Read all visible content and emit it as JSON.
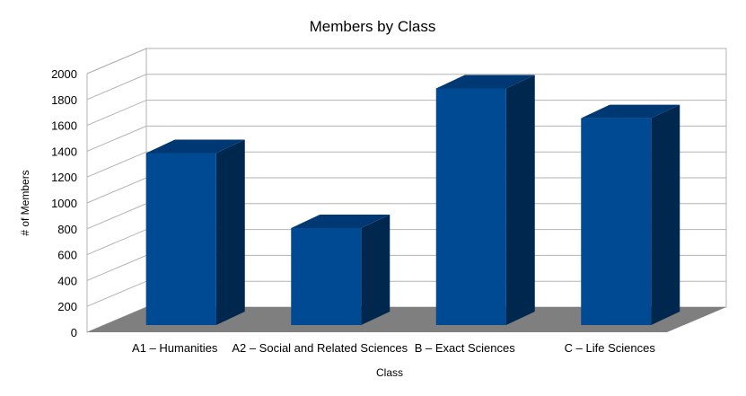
{
  "chart_data": {
    "type": "bar",
    "style": "3d",
    "title": "Members by Class",
    "xlabel": "Class",
    "ylabel": "# of Members",
    "categories": [
      "A1 – Humanities",
      "A2 – Social and Related Sciences",
      "B – Exact Sciences",
      "C – Life Sciences"
    ],
    "values": [
      1330,
      750,
      1830,
      1600
    ],
    "ylim": [
      0,
      2000
    ],
    "yticks": [
      "0",
      "200",
      "400",
      "600",
      "800",
      "1000",
      "1200",
      "1400",
      "1600",
      "1800",
      "2000"
    ],
    "grid": true,
    "legend": "none",
    "colors": {
      "bar_front": "#004a93",
      "bar_side": "#00284f",
      "bar_top": "#003873",
      "floor": "#7f7f7f",
      "grid": "#b3b3b3"
    }
  }
}
